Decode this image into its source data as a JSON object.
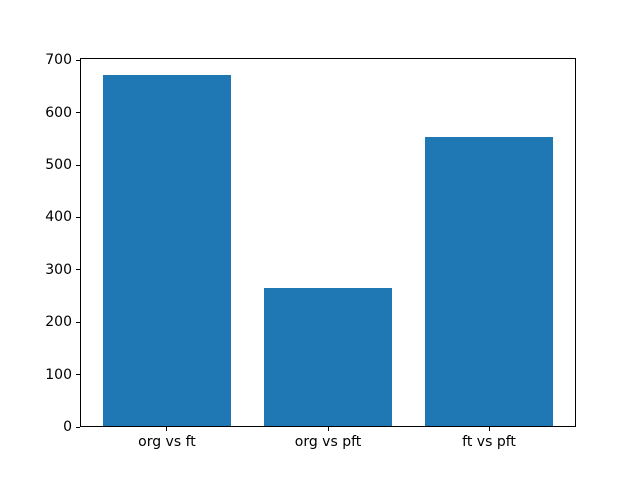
{
  "chart_data": {
    "type": "bar",
    "title": "",
    "categories": [
      "org vs ft",
      "org vs pft",
      "ft vs pft"
    ],
    "values": [
      672,
      265,
      554
    ],
    "xlabel": "",
    "ylabel": "",
    "yticks": [
      0,
      100,
      200,
      300,
      400,
      500,
      600,
      700
    ],
    "ylim": [
      0,
      705
    ],
    "xlim": [
      -0.54,
      2.54
    ],
    "bar_width": 0.8,
    "bar_color": "#1f77b4",
    "axis_color": "#000000",
    "background": "#ffffff",
    "grid": false,
    "legend": "none"
  }
}
